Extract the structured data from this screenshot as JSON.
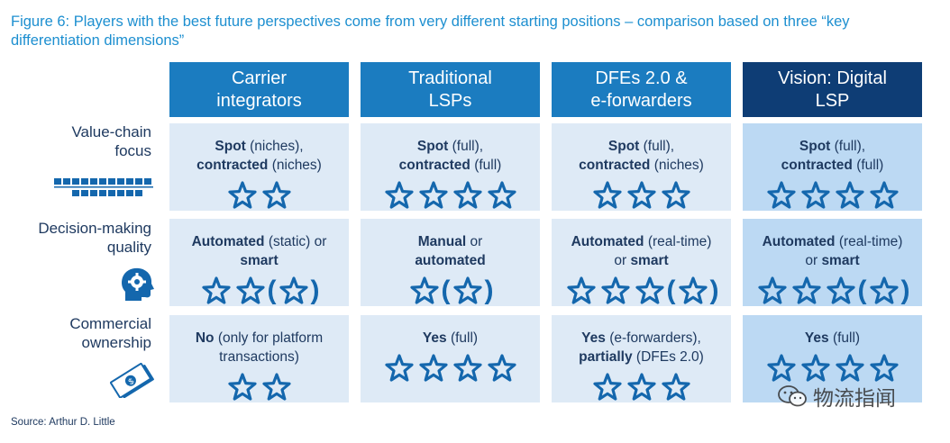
{
  "title": "Figure 6: Players with the best future perspectives come from very different starting positions – comparison based on three “key differentiation dimensions”",
  "source": "Source: Arthur D. Little",
  "watermark": "物流指闻",
  "colors": {
    "title": "#1d8fd0",
    "header": "#1b7cc0",
    "header_highlight": "#0e3d75",
    "cell": "#deeaf6",
    "cell_highlight": "#bcd9f3",
    "star": "#1467ad"
  },
  "columns": [
    {
      "label": "Carrier\nintegrators"
    },
    {
      "label": "Traditional\nLSPs"
    },
    {
      "label": "DFEs 2.0 &\ne-forwarders"
    },
    {
      "label": "Vision: Digital\nLSP"
    }
  ],
  "rows": [
    {
      "label": "Value-chain\nfocus",
      "icon": "value-chain-bars-icon"
    },
    {
      "label": "Decision-making\nquality",
      "icon": "head-gear-icon"
    },
    {
      "label": "Commercial\nownership",
      "icon": "banknote-icon"
    }
  ],
  "chart_data": {
    "type": "table",
    "title": "Figure 6: Players with the best future perspectives come from very different starting positions – comparison based on three “key differentiation dimensions”",
    "columns": [
      "Carrier integrators",
      "Traditional LSPs",
      "DFEs 2.0 & e-forwarders",
      "Vision: Digital LSP"
    ],
    "rows": [
      "Value-chain focus",
      "Decision-making quality",
      "Commercial ownership"
    ],
    "cells": [
      [
        {
          "lines": [
            [
              [
                "Spot",
                true
              ],
              [
                " (niches),",
                false
              ]
            ],
            [
              [
                "contracted",
                true
              ],
              [
                " (niches)",
                false
              ]
            ]
          ],
          "stars": 2,
          "optional_stars": 0
        },
        {
          "lines": [
            [
              [
                "Spot",
                true
              ],
              [
                " (full),",
                false
              ]
            ],
            [
              [
                "contracted",
                true
              ],
              [
                " (full)",
                false
              ]
            ]
          ],
          "stars": 4,
          "optional_stars": 0
        },
        {
          "lines": [
            [
              [
                "Spot",
                true
              ],
              [
                " (full),",
                false
              ]
            ],
            [
              [
                "contracted",
                true
              ],
              [
                " (niches)",
                false
              ]
            ]
          ],
          "stars": 3,
          "optional_stars": 0
        },
        {
          "lines": [
            [
              [
                "Spot",
                true
              ],
              [
                " (full),",
                false
              ]
            ],
            [
              [
                "contracted",
                true
              ],
              [
                " (full)",
                false
              ]
            ]
          ],
          "stars": 4,
          "optional_stars": 0
        }
      ],
      [
        {
          "lines": [
            [
              [
                "Automated",
                true
              ],
              [
                " (static) or",
                false
              ]
            ],
            [
              [
                "smart",
                true
              ]
            ]
          ],
          "stars": 2,
          "optional_stars": 1
        },
        {
          "lines": [
            [
              [
                "Manual",
                true
              ],
              [
                " or",
                false
              ]
            ],
            [
              [
                "automated",
                true
              ]
            ]
          ],
          "stars": 1,
          "optional_stars": 1
        },
        {
          "lines": [
            [
              [
                "Automated",
                true
              ],
              [
                " (real-time)",
                false
              ]
            ],
            [
              [
                "or ",
                false
              ],
              [
                "smart",
                true
              ]
            ]
          ],
          "stars": 3,
          "optional_stars": 1
        },
        {
          "lines": [
            [
              [
                "Automated",
                true
              ],
              [
                " (real-time)",
                false
              ]
            ],
            [
              [
                "or ",
                false
              ],
              [
                "smart",
                true
              ]
            ]
          ],
          "stars": 3,
          "optional_stars": 1
        }
      ],
      [
        {
          "lines": [
            [
              [
                "No",
                true
              ],
              [
                " (only for platform",
                false
              ]
            ],
            [
              [
                "transactions)",
                false
              ]
            ]
          ],
          "stars": 2,
          "optional_stars": 0
        },
        {
          "lines": [
            [
              [
                "Yes",
                true
              ],
              [
                " (full)",
                false
              ]
            ]
          ],
          "stars": 4,
          "optional_stars": 0
        },
        {
          "lines": [
            [
              [
                "Yes",
                true
              ],
              [
                " (e-forwarders),",
                false
              ]
            ],
            [
              [
                "partially",
                true
              ],
              [
                " (DFEs 2.0)",
                false
              ]
            ]
          ],
          "stars": 3,
          "optional_stars": 0
        },
        {
          "lines": [
            [
              [
                "Yes",
                true
              ],
              [
                " (full)",
                false
              ]
            ]
          ],
          "stars": 4,
          "optional_stars": 0
        }
      ]
    ]
  }
}
